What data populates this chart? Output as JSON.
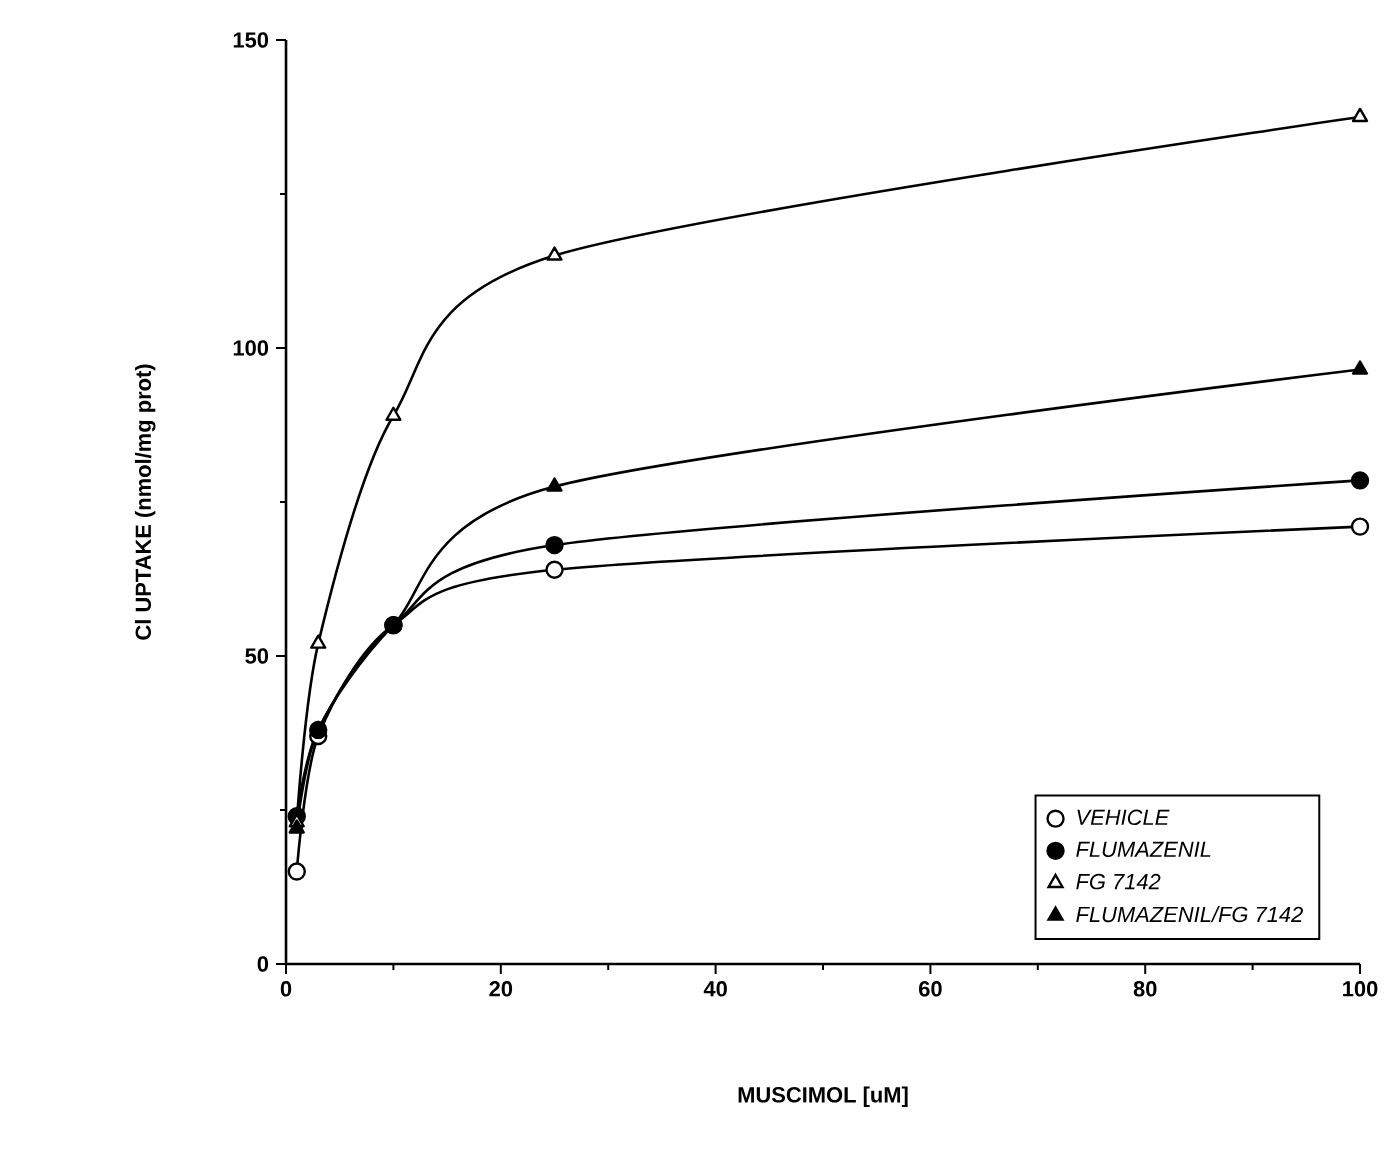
{
  "chart_data": {
    "type": "line",
    "xlabel": "MUSCIMOL   [uM]",
    "ylabel": "Cl  UPTAKE  (nmol/mg  prot)",
    "x": [
      1,
      3,
      10,
      25,
      100
    ],
    "series": [
      {
        "name": "VEHICLE",
        "color": "#000000",
        "marker": "circle-open",
        "values": [
          15,
          37,
          55,
          64,
          71
        ]
      },
      {
        "name": "FLUMAZENIL",
        "color": "#000000",
        "marker": "circle",
        "values": [
          24,
          38,
          55,
          68,
          78.5
        ]
      },
      {
        "name": "FG 7142",
        "color": "#000000",
        "marker": "triangle-open",
        "values": [
          23,
          52,
          89,
          115,
          137.5
        ]
      },
      {
        "name": "FLUMAZENIL/FG 7142",
        "color": "#000000",
        "marker": "triangle",
        "values": [
          22,
          38,
          55,
          77.5,
          96.5
        ]
      }
    ],
    "xlim": [
      0,
      100
    ],
    "xticks": [
      0,
      20,
      40,
      60,
      80,
      100
    ],
    "ylim": [
      0,
      150
    ],
    "yticks": [
      0,
      50,
      100,
      150
    ],
    "legend": "bottom right",
    "grid": false,
    "line_style": "solid"
  }
}
